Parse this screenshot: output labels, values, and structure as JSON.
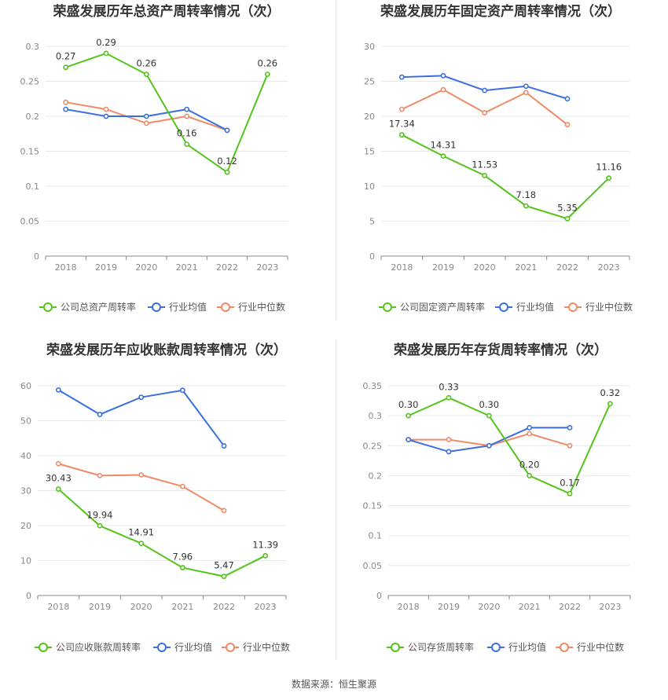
{
  "source": "数据来源：恒生聚源",
  "colors": {
    "company": "#52c41a",
    "avg": "#3b6fe0",
    "median": "#f08a65"
  },
  "chart_data": [
    {
      "type": "line",
      "title": "荣盛发展历年总资产周转率情况（次）",
      "categories": [
        "2018",
        "2019",
        "2020",
        "2021",
        "2022",
        "2023"
      ],
      "ylim": [
        0,
        0.3
      ],
      "yticks": [
        0,
        0.05,
        0.1,
        0.15,
        0.2,
        0.25,
        0.3
      ],
      "ytick_labels": [
        "0",
        "0.05",
        "0.1",
        "0.15",
        "0.2",
        "0.25",
        "0.3"
      ],
      "series": [
        {
          "name": "公司总资产周转率",
          "key": "company",
          "values": [
            0.27,
            0.29,
            0.26,
            0.16,
            0.12,
            0.26
          ],
          "labels": [
            "0.27",
            "0.29",
            "0.26",
            "0.16",
            "0.12",
            "0.26"
          ]
        },
        {
          "name": "行业均值",
          "key": "avg",
          "values": [
            0.21,
            0.2,
            0.2,
            0.21,
            0.18,
            null
          ]
        },
        {
          "name": "行业中位数",
          "key": "median",
          "values": [
            0.22,
            0.21,
            0.19,
            0.2,
            0.18,
            null
          ]
        }
      ]
    },
    {
      "type": "line",
      "title": "荣盛发展历年固定资产周转率情况（次）",
      "categories": [
        "2018",
        "2019",
        "2020",
        "2021",
        "2022",
        "2023"
      ],
      "ylim": [
        0,
        30
      ],
      "yticks": [
        0,
        5,
        10,
        15,
        20,
        25,
        30
      ],
      "ytick_labels": [
        "0",
        "5",
        "10",
        "15",
        "20",
        "25",
        "30"
      ],
      "series": [
        {
          "name": "公司固定资产周转率",
          "key": "company",
          "values": [
            17.34,
            14.31,
            11.53,
            7.18,
            5.35,
            11.16
          ],
          "labels": [
            "17.34",
            "14.31",
            "11.53",
            "7.18",
            "5.35",
            "11.16"
          ]
        },
        {
          "name": "行业均值",
          "key": "avg",
          "values": [
            25.6,
            25.8,
            23.7,
            24.3,
            22.5,
            null
          ]
        },
        {
          "name": "行业中位数",
          "key": "median",
          "values": [
            21.0,
            23.8,
            20.5,
            23.4,
            18.8,
            null
          ]
        }
      ]
    },
    {
      "type": "line",
      "title": "荣盛发展历年应收账款周转率情况（次）",
      "categories": [
        "2018",
        "2019",
        "2020",
        "2021",
        "2022",
        "2023"
      ],
      "ylim": [
        0,
        60
      ],
      "yticks": [
        0,
        10,
        20,
        30,
        40,
        50,
        60
      ],
      "ytick_labels": [
        "0",
        "10",
        "20",
        "30",
        "40",
        "50",
        "60"
      ],
      "series": [
        {
          "name": "公司应收账款周转率",
          "key": "company",
          "values": [
            30.43,
            19.94,
            14.91,
            7.96,
            5.47,
            11.39
          ],
          "labels": [
            "30.43",
            "19.94",
            "14.91",
            "7.96",
            "5.47",
            "11.39"
          ]
        },
        {
          "name": "行业均值",
          "key": "avg",
          "values": [
            58.8,
            51.8,
            56.7,
            58.7,
            42.8,
            null
          ]
        },
        {
          "name": "行业中位数",
          "key": "median",
          "values": [
            37.7,
            34.3,
            34.5,
            31.2,
            24.3,
            null
          ]
        }
      ]
    },
    {
      "type": "line",
      "title": "荣盛发展历年存货周转率情况（次）",
      "categories": [
        "2018",
        "2019",
        "2020",
        "2021",
        "2022",
        "2023"
      ],
      "ylim": [
        0,
        0.35
      ],
      "yticks": [
        0,
        0.05,
        0.1,
        0.15,
        0.2,
        0.25,
        0.3,
        0.35
      ],
      "ytick_labels": [
        "0",
        "0.05",
        "0.1",
        "0.15",
        "0.2",
        "0.25",
        "0.3",
        "0.35"
      ],
      "series": [
        {
          "name": "公司存货周转率",
          "key": "company",
          "values": [
            0.3,
            0.33,
            0.3,
            0.2,
            0.17,
            0.32
          ],
          "labels": [
            "0.30",
            "0.33",
            "0.30",
            "0.20",
            "0.17",
            "0.32"
          ]
        },
        {
          "name": "行业均值",
          "key": "avg",
          "values": [
            0.26,
            0.24,
            0.25,
            0.28,
            0.28,
            null
          ]
        },
        {
          "name": "行业中位数",
          "key": "median",
          "values": [
            0.26,
            0.26,
            0.25,
            0.27,
            0.25,
            null
          ]
        }
      ]
    }
  ]
}
